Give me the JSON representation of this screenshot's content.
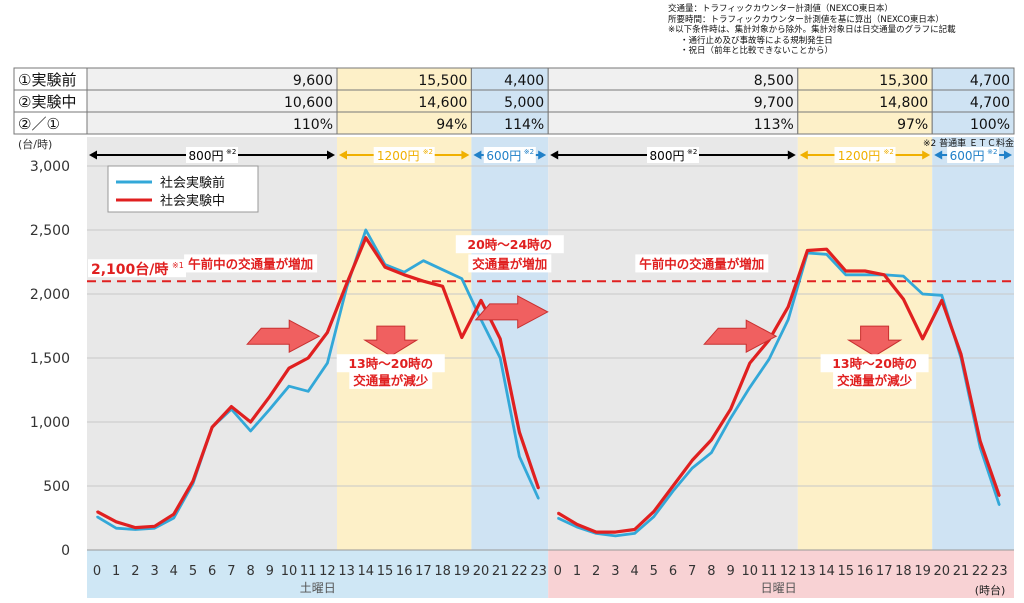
{
  "notes": [
    "交通量：トラフィックカウンター計測値（NEXCO東日本）",
    "所要時間：トラフィックカウンター計測値を基に算出（NEXCO東日本）",
    "※以下条件時は、集計対象から除外。集計対象日は日交通量のグラフに記載",
    "・通行止め及び事故等による規制発生日",
    "・祝日（前年と比較できないことから）"
  ],
  "table": {
    "rows": [
      {
        "label": "①実験前",
        "values": [
          "9,600",
          "15,500",
          "4,400",
          "8,500",
          "15,300",
          "4,700"
        ]
      },
      {
        "label": "②実験中",
        "values": [
          "10,600",
          "14,600",
          "5,000",
          "9,700",
          "14,800",
          "4,700"
        ]
      },
      {
        "label": "②／①",
        "values": [
          "110%",
          "94%",
          "114%",
          "113%",
          "97%",
          "100%"
        ]
      }
    ]
  },
  "toll_note": "※2 普通車 ＥＴＣ料金",
  "price_bands": [
    {
      "label": "800円",
      "sup": "※2",
      "from": 0,
      "to": 13,
      "color": "#000000"
    },
    {
      "label": "1200円",
      "sup": "※2",
      "from": 13,
      "to": 20,
      "color": "#f0b000"
    },
    {
      "label": "600円",
      "sup": "※2",
      "from": 20,
      "to": 24,
      "color": "#2080c8"
    },
    {
      "label": "800円",
      "sup": "※2",
      "from": 24,
      "to": 37,
      "color": "#000000"
    },
    {
      "label": "1200円",
      "sup": "※2",
      "from": 37,
      "to": 44,
      "color": "#f0b000"
    },
    {
      "label": "600円",
      "sup": "※2",
      "from": 44,
      "to": 48,
      "color": "#2080c8"
    }
  ],
  "threshold": {
    "value": 2100,
    "label": "2,100台/時",
    "sup": "※1"
  },
  "annotations": [
    {
      "text": "午前中の交通量が増加",
      "x": 8,
      "y": 2200
    },
    {
      "text": "20時～24時の",
      "x": 21.5,
      "y": 2350
    },
    {
      "text": "交通量が増加",
      "x": 21.5,
      "y": 2200
    },
    {
      "text": "13時～20時の",
      "x": 15.3,
      "y": 1420
    },
    {
      "text": "交通量が減少",
      "x": 15.3,
      "y": 1290
    },
    {
      "text": "午前中の交通量が増加",
      "x": 31.5,
      "y": 2200
    },
    {
      "text": "13時～20時の",
      "x": 40.5,
      "y": 1420
    },
    {
      "text": "交通量が減少",
      "x": 40.5,
      "y": 1290
    }
  ],
  "arrows": [
    {
      "dir": "up",
      "x": 9.7,
      "y": 1670
    },
    {
      "dir": "down",
      "x": 15.3,
      "y": 1640
    },
    {
      "dir": "up",
      "x": 21.6,
      "y": 1860
    },
    {
      "dir": "up",
      "x": 33.5,
      "y": 1670
    },
    {
      "dir": "down",
      "x": 40.5,
      "y": 1640
    }
  ],
  "day_labels": [
    {
      "text": "土曜日",
      "x": 11.5
    },
    {
      "text": "日曜日",
      "x": 35.5
    }
  ],
  "xunit": "(時台)",
  "chart_data": {
    "type": "line",
    "ylabel": "(台/時)",
    "ylim": [
      0,
      3000
    ],
    "yticks": [
      0,
      500,
      1000,
      1500,
      2000,
      2500,
      3000
    ],
    "yticklabels": [
      "0",
      "500",
      "1,000",
      "1,500",
      "2,000",
      "2,500",
      "3,000"
    ],
    "x": [
      0,
      1,
      2,
      3,
      4,
      5,
      6,
      7,
      8,
      9,
      10,
      11,
      12,
      13,
      14,
      15,
      16,
      17,
      18,
      19,
      20,
      21,
      22,
      23,
      0,
      1,
      2,
      3,
      4,
      5,
      6,
      7,
      8,
      9,
      10,
      11,
      12,
      13,
      14,
      15,
      16,
      17,
      18,
      19,
      20,
      21,
      22,
      23
    ],
    "grid": true,
    "legend_position": "top-left",
    "series": [
      {
        "name": "社会実験前",
        "color": "#33a8d8",
        "values": [
          260,
          170,
          160,
          170,
          250,
          520,
          960,
          1100,
          930,
          1100,
          1280,
          1240,
          1460,
          2050,
          2500,
          2230,
          2170,
          2260,
          2190,
          2120,
          1800,
          1500,
          730,
          400,
          250,
          180,
          130,
          110,
          130,
          260,
          460,
          640,
          760,
          1030,
          1270,
          1490,
          1800,
          2320,
          2310,
          2150,
          2150,
          2150,
          2140,
          2000,
          1990,
          1500,
          800,
          350
        ]
      },
      {
        "name": "社会実験中",
        "color": "#e02020",
        "values": [
          300,
          220,
          175,
          185,
          280,
          540,
          960,
          1120,
          1000,
          1200,
          1420,
          1500,
          1700,
          2080,
          2440,
          2210,
          2150,
          2100,
          2060,
          1660,
          1950,
          1650,
          920,
          480,
          290,
          200,
          140,
          140,
          160,
          300,
          500,
          700,
          860,
          1100,
          1460,
          1640,
          1900,
          2340,
          2350,
          2180,
          2180,
          2150,
          1960,
          1650,
          1950,
          1530,
          850,
          420
        ]
      }
    ]
  }
}
